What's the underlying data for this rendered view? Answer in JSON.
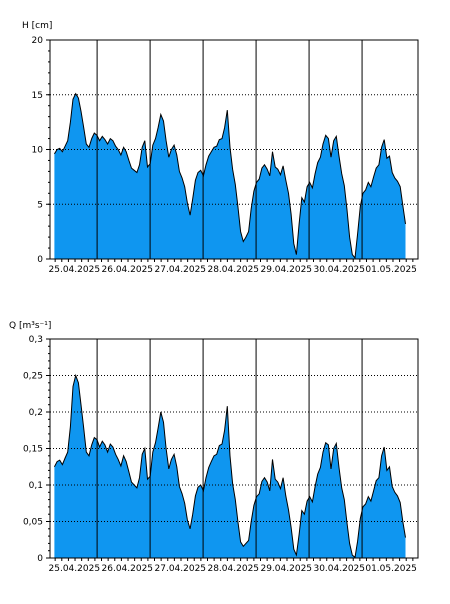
{
  "chart_data": [
    {
      "type": "area",
      "ylabel": "H [cm]",
      "ylim": [
        0,
        20
      ],
      "yticks": [
        0,
        5,
        10,
        15,
        20
      ],
      "ytick_labels": [
        "0",
        "5",
        "10",
        "15",
        "20"
      ],
      "x_range_days": 7,
      "day_labels": [
        "25.04.2025",
        "26.04.2025",
        "27.04.2025",
        "28.04.2025",
        "29.04.2025",
        "30.04.2025",
        "01.05.2025"
      ],
      "grid": "dotted horizontal at major ticks, solid vertical at day boundaries",
      "fill_color": "#0f96f0",
      "line_color": "#000000",
      "series": [
        {
          "values": [
            9.6,
            10.0,
            10.1,
            9.8,
            10.3,
            10.8,
            12.5,
            14.6,
            15.1,
            14.7,
            13.5,
            12.0,
            10.5,
            10.2,
            11.0,
            11.5,
            11.3,
            10.8,
            11.2,
            10.9,
            10.5,
            11.0,
            10.8,
            10.3,
            10.0,
            9.5,
            10.2,
            9.8,
            9.0,
            8.3,
            8.1,
            7.9,
            8.6,
            10.2,
            10.8,
            8.4,
            8.7,
            10.4,
            11.0,
            12.0,
            13.2,
            12.6,
            10.8,
            9.3,
            10.0,
            10.4,
            9.5,
            8.0,
            7.4,
            6.6,
            5.1,
            4.0,
            5.5,
            7.2,
            7.9,
            8.1,
            7.6,
            8.6,
            9.4,
            9.8,
            10.2,
            10.3,
            10.9,
            11.0,
            12.0,
            13.6,
            10.2,
            8.2,
            6.8,
            4.8,
            2.5,
            1.6,
            2.0,
            2.5,
            4.6,
            6.2,
            7.0,
            7.3,
            8.3,
            8.6,
            8.2,
            7.6,
            9.8,
            8.4,
            8.2,
            7.7,
            8.5,
            7.2,
            6.0,
            4.1,
            1.4,
            0.4,
            3.2,
            5.6,
            5.2,
            6.6,
            7.0,
            6.5,
            7.8,
            8.8,
            9.3,
            10.5,
            11.3,
            11.0,
            9.3,
            10.8,
            11.2,
            9.4,
            7.8,
            6.7,
            4.5,
            2.0,
            0.4,
            0.1,
            2.3,
            4.8,
            6.0,
            6.3,
            7.0,
            6.6,
            7.5,
            8.3,
            8.6,
            10.2,
            10.9,
            9.2,
            9.4,
            7.9,
            7.4,
            7.1,
            6.6,
            4.9,
            3.2
          ]
        }
      ]
    },
    {
      "type": "area",
      "ylabel": "Q [m³s⁻¹]",
      "ylim": [
        0,
        0.3
      ],
      "yticks": [
        0,
        0.05,
        0.1,
        0.15,
        0.2,
        0.25,
        0.3
      ],
      "ytick_labels": [
        "0",
        "0,05",
        "0,1",
        "0,15",
        "0,2",
        "0,25",
        "0,3"
      ],
      "x_range_days": 7,
      "day_labels": [
        "25.04.2025",
        "26.04.2025",
        "27.04.2025",
        "28.04.2025",
        "29.04.2025",
        "30.04.2025",
        "01.05.2025"
      ],
      "grid": "dotted horizontal at major ticks, solid vertical at day boundaries",
      "fill_color": "#0f96f0",
      "line_color": "#000000",
      "series": [
        {
          "values": [
            0.125,
            0.132,
            0.134,
            0.128,
            0.137,
            0.145,
            0.18,
            0.235,
            0.25,
            0.24,
            0.21,
            0.178,
            0.145,
            0.14,
            0.155,
            0.165,
            0.162,
            0.152,
            0.16,
            0.155,
            0.145,
            0.156,
            0.152,
            0.142,
            0.135,
            0.126,
            0.14,
            0.132,
            0.118,
            0.104,
            0.1,
            0.096,
            0.11,
            0.142,
            0.15,
            0.108,
            0.112,
            0.145,
            0.158,
            0.178,
            0.2,
            0.186,
            0.15,
            0.122,
            0.135,
            0.142,
            0.125,
            0.098,
            0.088,
            0.075,
            0.052,
            0.04,
            0.06,
            0.085,
            0.097,
            0.1,
            0.092,
            0.11,
            0.124,
            0.132,
            0.14,
            0.142,
            0.154,
            0.156,
            0.175,
            0.208,
            0.14,
            0.102,
            0.08,
            0.05,
            0.022,
            0.016,
            0.02,
            0.024,
            0.05,
            0.072,
            0.084,
            0.088,
            0.105,
            0.11,
            0.104,
            0.092,
            0.135,
            0.108,
            0.104,
            0.095,
            0.11,
            0.085,
            0.066,
            0.042,
            0.012,
            0.004,
            0.032,
            0.065,
            0.06,
            0.078,
            0.084,
            0.077,
            0.098,
            0.115,
            0.124,
            0.145,
            0.158,
            0.155,
            0.122,
            0.15,
            0.157,
            0.124,
            0.096,
            0.08,
            0.048,
            0.02,
            0.004,
            0.001,
            0.023,
            0.054,
            0.07,
            0.074,
            0.084,
            0.078,
            0.092,
            0.106,
            0.11,
            0.14,
            0.152,
            0.12,
            0.125,
            0.098,
            0.09,
            0.085,
            0.076,
            0.05,
            0.028
          ]
        }
      ]
    }
  ]
}
